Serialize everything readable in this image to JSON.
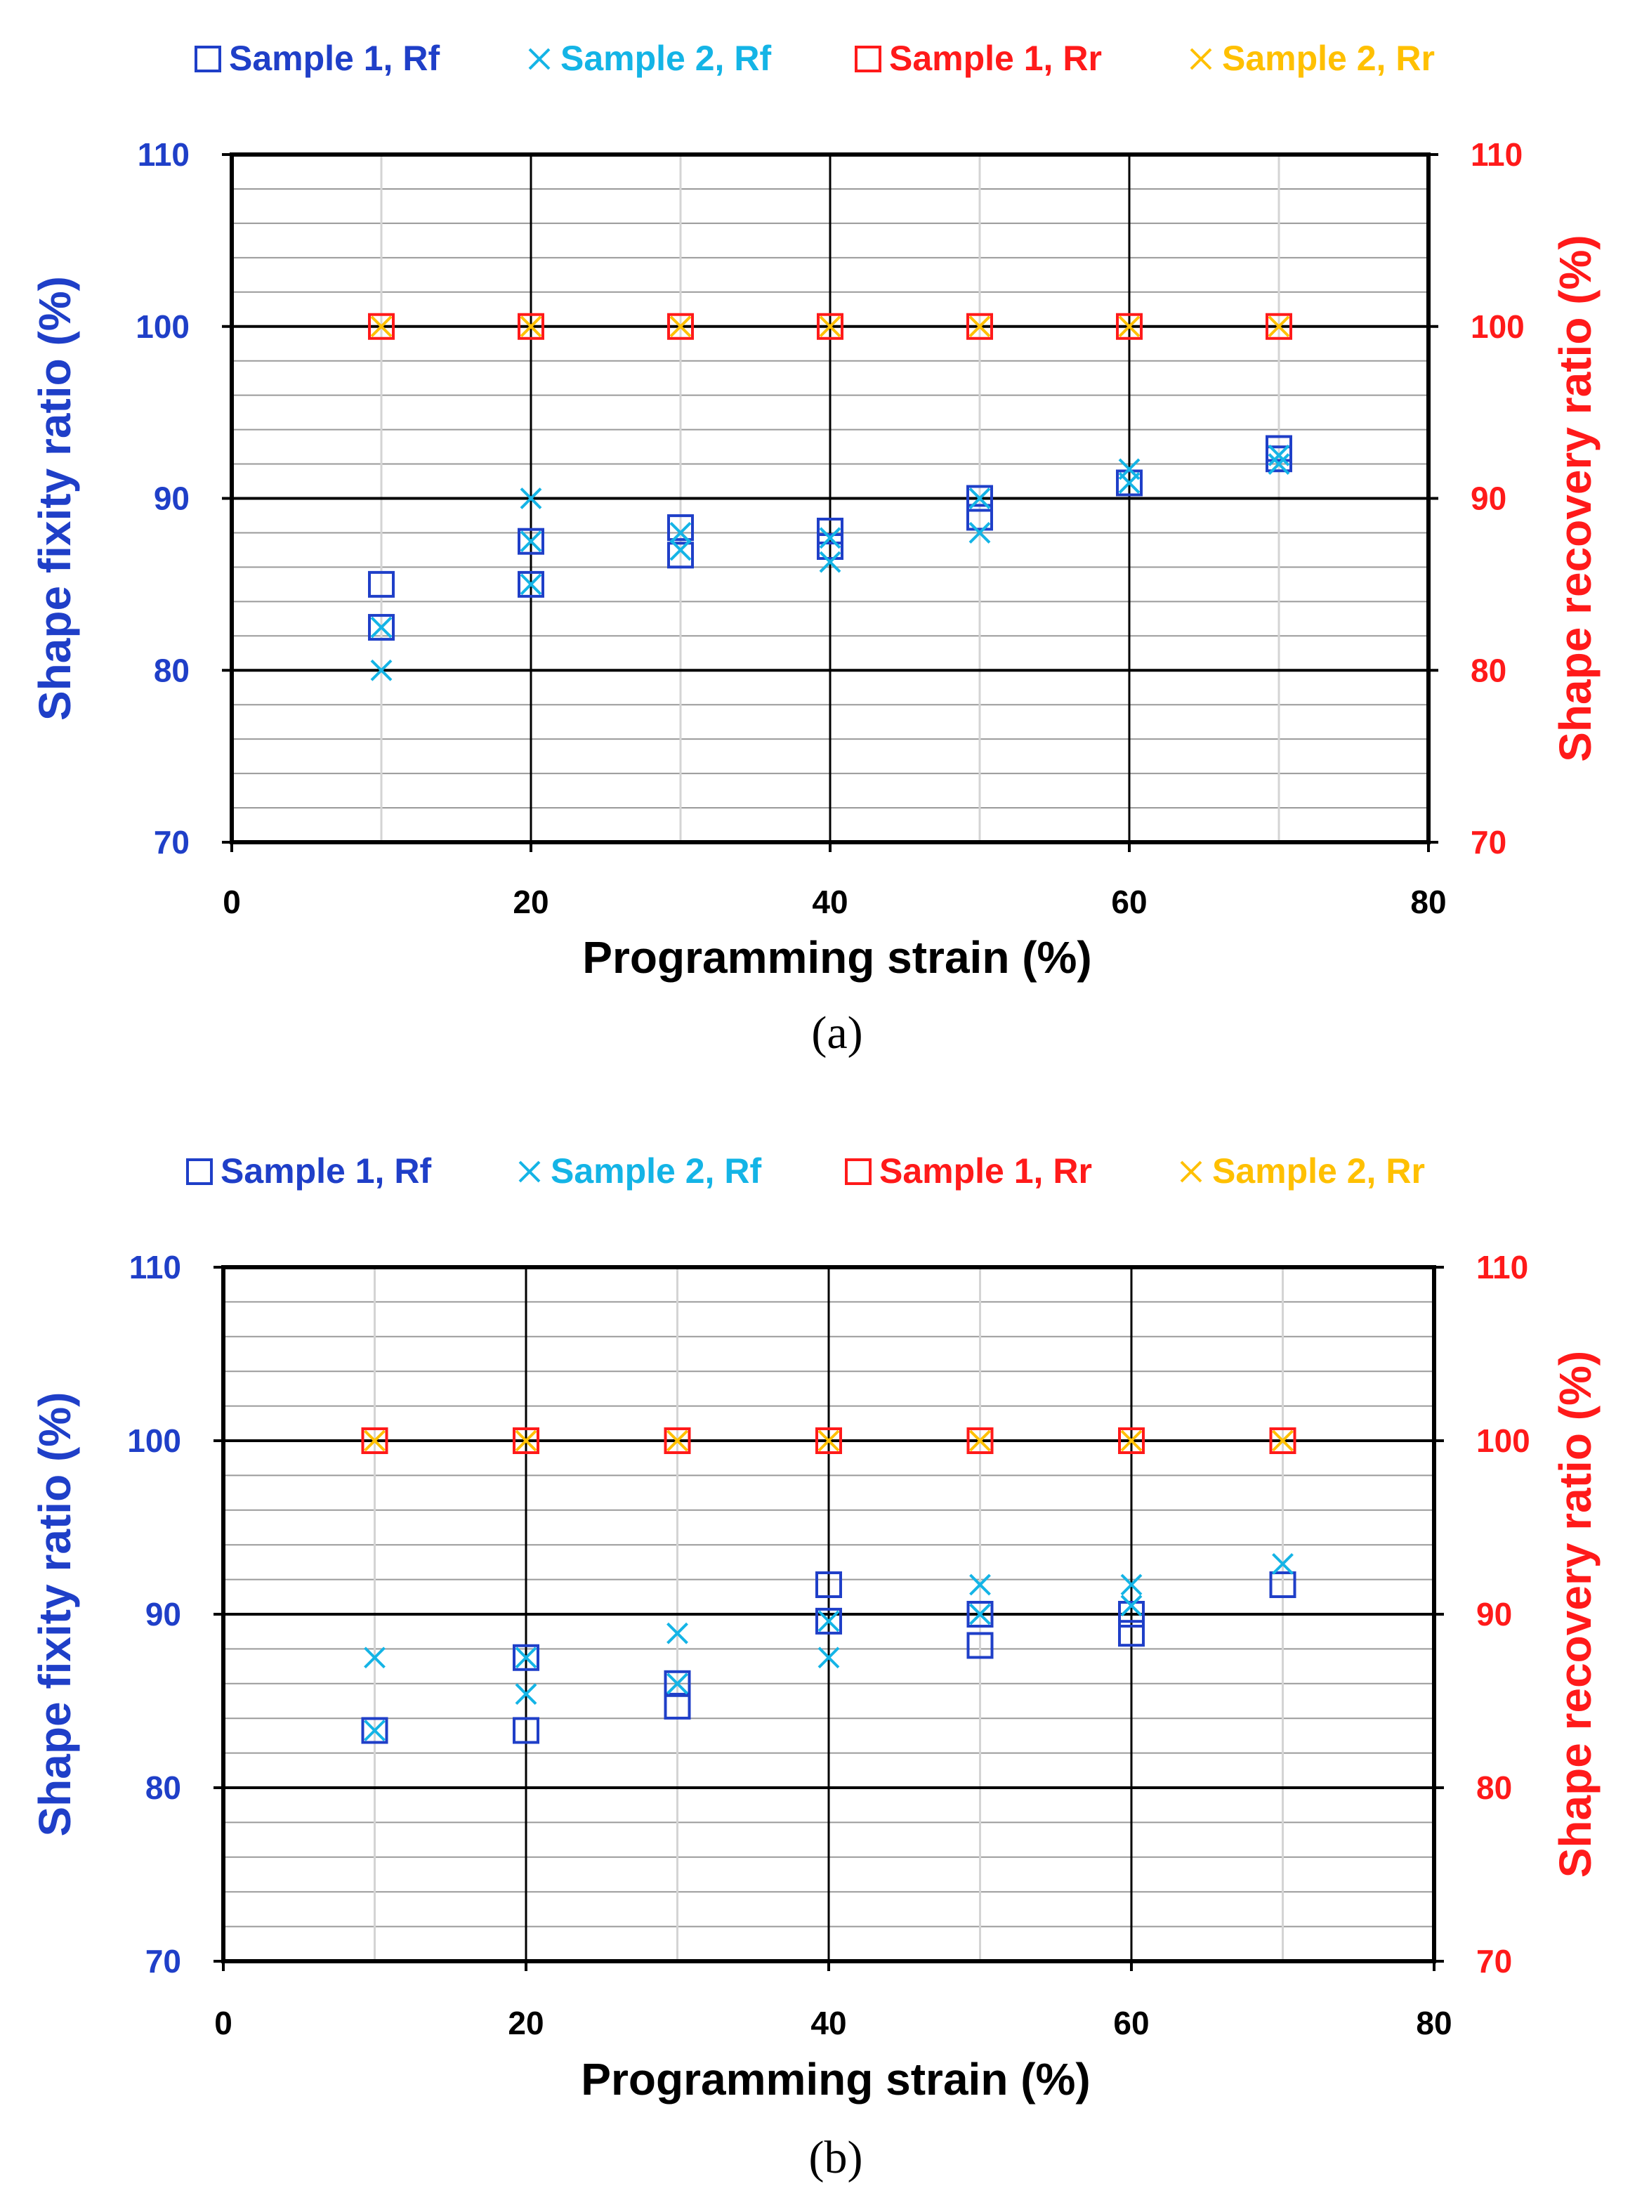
{
  "colors": {
    "sample1_rf": "#1F3FC8",
    "sample2_rf": "#14B4E6",
    "sample1_rr": "#FF1A1A",
    "sample2_rr": "#FFC000",
    "left_axis": "#1F3FC8",
    "right_axis": "#FF1A1A"
  },
  "chart_data": [
    {
      "type": "scatter",
      "panel_label": "(a)",
      "xlabel": "Programming strain (%)",
      "ylabel_left": "Shape fixity ratio (%)",
      "ylabel_right": "Shape recovery ratio (%)",
      "xlim": [
        0,
        80
      ],
      "ylim": [
        70,
        110
      ],
      "x_ticks": [
        "0",
        "20",
        "40",
        "60",
        "80"
      ],
      "y_ticks": [
        "70",
        "80",
        "90",
        "100",
        "110"
      ],
      "legend": [
        "Sample 1, Rf",
        "Sample 2, Rf",
        "Sample 1, Rr",
        "Sample 2, Rr"
      ],
      "series": [
        {
          "name": "Sample 1, Rf",
          "marker": "square",
          "color": "#1F3FC8",
          "points": [
            [
              10,
              85.0
            ],
            [
              10,
              82.5
            ],
            [
              20,
              87.5
            ],
            [
              20,
              85.0
            ],
            [
              30,
              88.3
            ],
            [
              30,
              86.7
            ],
            [
              40,
              88.1
            ],
            [
              40,
              87.2
            ],
            [
              50,
              90.0
            ],
            [
              50,
              88.9
            ],
            [
              60,
              90.9
            ],
            [
              70,
              92.9
            ],
            [
              70,
              92.3
            ]
          ]
        },
        {
          "name": "Sample 2, Rf",
          "marker": "x",
          "color": "#14B4E6",
          "points": [
            [
              10,
              80.0
            ],
            [
              10,
              82.5
            ],
            [
              20,
              90.0
            ],
            [
              20,
              87.5
            ],
            [
              20,
              85.0
            ],
            [
              30,
              88.0
            ],
            [
              30,
              87.0
            ],
            [
              40,
              86.3
            ],
            [
              40,
              87.7
            ],
            [
              50,
              88.0
            ],
            [
              50,
              90.0
            ],
            [
              60,
              91.7
            ],
            [
              60,
              90.9
            ],
            [
              70,
              92.0
            ],
            [
              70,
              92.5
            ]
          ]
        },
        {
          "name": "Sample 1, Rr",
          "marker": "square",
          "color": "#FF1A1A",
          "points": [
            [
              10,
              100
            ],
            [
              20,
              100
            ],
            [
              30,
              100
            ],
            [
              40,
              100
            ],
            [
              50,
              100
            ],
            [
              60,
              100
            ],
            [
              70,
              100
            ]
          ]
        },
        {
          "name": "Sample 2, Rr",
          "marker": "x",
          "color": "#FFC000",
          "points": [
            [
              10,
              100
            ],
            [
              20,
              100
            ],
            [
              30,
              100
            ],
            [
              40,
              100
            ],
            [
              50,
              100
            ],
            [
              60,
              100
            ],
            [
              70,
              100
            ]
          ]
        }
      ]
    },
    {
      "type": "scatter",
      "panel_label": "(b)",
      "xlabel": "Programming strain (%)",
      "ylabel_left": "Shape fixity ratio (%)",
      "ylabel_right": "Shape recovery ratio (%)",
      "xlim": [
        0,
        80
      ],
      "ylim": [
        70,
        110
      ],
      "x_ticks": [
        "0",
        "20",
        "40",
        "60",
        "80"
      ],
      "y_ticks": [
        "70",
        "80",
        "90",
        "100",
        "110"
      ],
      "legend": [
        "Sample 1, Rf",
        "Sample 2, Rf",
        "Sample 1, Rr",
        "Sample 2, Rr"
      ],
      "series": [
        {
          "name": "Sample 1, Rf",
          "marker": "square",
          "color": "#1F3FC8",
          "points": [
            [
              10,
              83.3
            ],
            [
              20,
              87.5
            ],
            [
              20,
              83.3
            ],
            [
              30,
              86.0
            ],
            [
              30,
              84.7
            ],
            [
              40,
              91.7
            ],
            [
              40,
              89.6
            ],
            [
              50,
              90.0
            ],
            [
              50,
              88.2
            ],
            [
              60,
              90.0
            ],
            [
              60,
              88.9
            ],
            [
              70,
              91.7
            ]
          ]
        },
        {
          "name": "Sample 2, Rf",
          "marker": "x",
          "color": "#14B4E6",
          "points": [
            [
              10,
              87.5
            ],
            [
              10,
              83.3
            ],
            [
              20,
              87.5
            ],
            [
              20,
              85.4
            ],
            [
              30,
              88.9
            ],
            [
              30,
              86.0
            ],
            [
              40,
              87.5
            ],
            [
              40,
              89.6
            ],
            [
              50,
              91.7
            ],
            [
              50,
              90.0
            ],
            [
              60,
              91.7
            ],
            [
              60,
              90.5
            ],
            [
              70,
              92.9
            ]
          ]
        },
        {
          "name": "Sample 1, Rr",
          "marker": "square",
          "color": "#FF1A1A",
          "points": [
            [
              10,
              100
            ],
            [
              20,
              100
            ],
            [
              30,
              100
            ],
            [
              40,
              100
            ],
            [
              50,
              100
            ],
            [
              60,
              100
            ],
            [
              70,
              100
            ]
          ]
        },
        {
          "name": "Sample 2, Rr",
          "marker": "x",
          "color": "#FFC000",
          "points": [
            [
              10,
              100
            ],
            [
              20,
              100
            ],
            [
              30,
              100
            ],
            [
              40,
              100
            ],
            [
              50,
              100
            ],
            [
              60,
              100
            ],
            [
              70,
              100
            ]
          ]
        }
      ]
    }
  ]
}
